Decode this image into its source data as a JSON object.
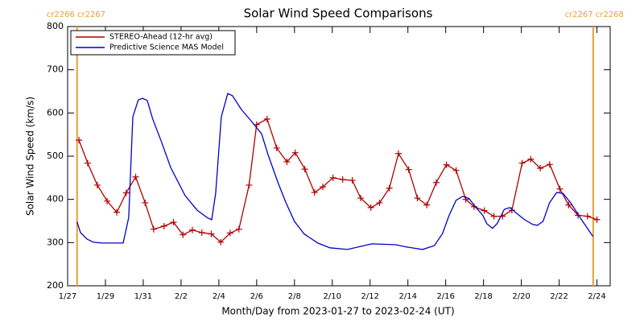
{
  "chart_data": {
    "type": "line",
    "title": "Solar Wind Speed Comparisons",
    "x_label": "Month/Day from 2023-01-27 to 2023-02-24 (UT)",
    "y_label": "Solar Wind Speed (km/s)",
    "xlim": [
      0,
      28.7
    ],
    "ylim": [
      200,
      800
    ],
    "xticks": [
      {
        "value": 0,
        "label": "1/27"
      },
      {
        "value": 2,
        "label": "1/29"
      },
      {
        "value": 4,
        "label": "1/31"
      },
      {
        "value": 6,
        "label": "2/2"
      },
      {
        "value": 8,
        "label": "2/4"
      },
      {
        "value": 10,
        "label": "2/6"
      },
      {
        "value": 12,
        "label": "2/8"
      },
      {
        "value": 14,
        "label": "2/10"
      },
      {
        "value": 16,
        "label": "2/12"
      },
      {
        "value": 18,
        "label": "2/14"
      },
      {
        "value": 20,
        "label": "2/16"
      },
      {
        "value": 22,
        "label": "2/18"
      },
      {
        "value": 24,
        "label": "2/20"
      },
      {
        "value": 26,
        "label": "2/22"
      },
      {
        "value": 28,
        "label": "2/24"
      }
    ],
    "yticks": [
      200,
      300,
      400,
      500,
      600,
      700,
      800
    ],
    "legend": "upper left",
    "markers": [
      {
        "x": 0.5,
        "label": "cr2266 cr2267",
        "color": "#e8a030"
      },
      {
        "x": 27.8,
        "label": "cr2267 cr2268",
        "color": "#e8a030"
      }
    ],
    "series": [
      {
        "name": "STEREO-Ahead (12-hr avg)",
        "color": "#b00000",
        "marker": "+",
        "x": [
          0.6,
          1.06,
          1.57,
          2.09,
          2.6,
          3.1,
          3.6,
          4.1,
          4.55,
          5.1,
          5.6,
          6.1,
          6.6,
          7.1,
          7.6,
          8.1,
          8.6,
          9.06,
          9.6,
          10.0,
          10.55,
          11.06,
          11.6,
          12.04,
          12.55,
          13.06,
          13.5,
          14.04,
          14.55,
          15.06,
          15.5,
          16.04,
          16.5,
          17.02,
          17.5,
          18.04,
          18.5,
          19.0,
          19.5,
          20.04,
          20.55,
          21.06,
          21.5,
          22.04,
          22.55,
          23.0,
          23.5,
          24.04,
          24.5,
          25.0,
          25.5,
          26.04,
          26.5,
          27.0,
          27.5,
          28.0
        ],
        "values": [
          537,
          484,
          433,
          396,
          370,
          415,
          452,
          392,
          331,
          338,
          347,
          318,
          329,
          323,
          320,
          301,
          322,
          331,
          433,
          573,
          586,
          519,
          487,
          508,
          470,
          416,
          429,
          450,
          446,
          444,
          403,
          381,
          392,
          426,
          506,
          469,
          403,
          387,
          439,
          480,
          467,
          400,
          383,
          374,
          361,
          361,
          375,
          484,
          493,
          472,
          481,
          424,
          387,
          363,
          361,
          353
        ]
      },
      {
        "name": "Predictive Science MAS Model",
        "color": "#0000cc",
        "x": [
          0.5,
          0.68,
          1.02,
          1.36,
          1.79,
          2.94,
          3.23,
          3.45,
          3.74,
          3.96,
          4.21,
          4.5,
          4.94,
          5.45,
          6.21,
          6.85,
          7.4,
          7.62,
          7.83,
          8.13,
          8.47,
          8.72,
          9.19,
          9.7,
          10.26,
          10.6,
          11.1,
          11.53,
          12.0,
          12.51,
          13.23,
          13.87,
          14.8,
          16.09,
          17.36,
          17.91,
          18.77,
          19.4,
          19.83,
          20.17,
          20.55,
          20.9,
          21.23,
          21.53,
          21.96,
          22.17,
          22.47,
          22.72,
          23.1,
          23.4,
          23.74,
          24.17,
          24.6,
          24.85,
          25.15,
          25.49,
          25.87,
          26.21,
          26.64,
          27.15,
          27.79
        ],
        "values": [
          348,
          323,
          308,
          301,
          299,
          299,
          358,
          591,
          630,
          634,
          629,
          586,
          536,
          474,
          409,
          375,
          357,
          353,
          414,
          591,
          645,
          640,
          608,
          582,
          552,
          504,
          442,
          394,
          349,
          320,
          299,
          288,
          284,
          297,
          295,
          290,
          284,
          293,
          321,
          362,
          398,
          407,
          402,
          385,
          363,
          344,
          333,
          344,
          377,
          381,
          368,
          353,
          342,
          340,
          349,
          392,
          416,
          414,
          390,
          355,
          314
        ]
      }
    ]
  }
}
